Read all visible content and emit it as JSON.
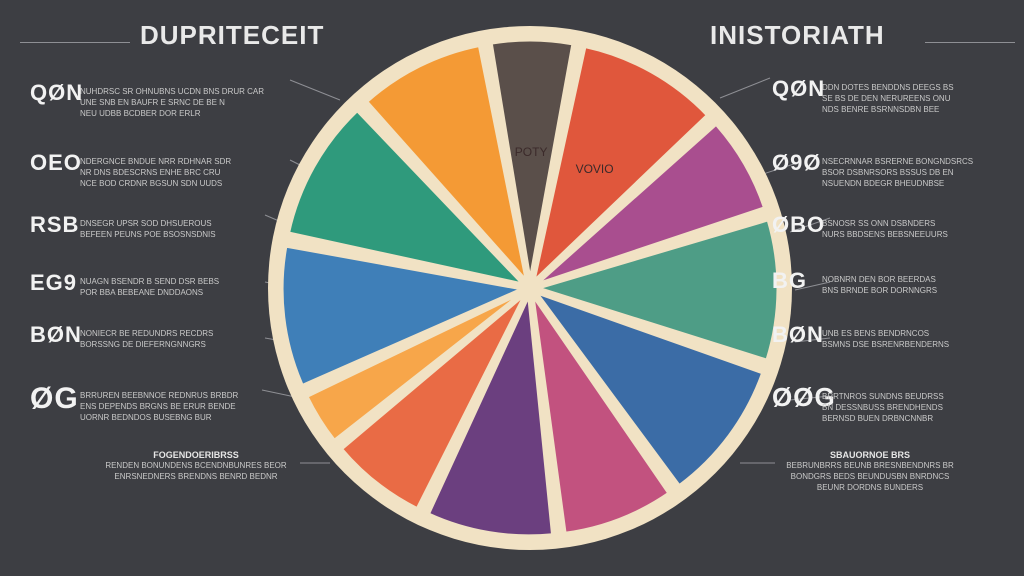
{
  "header": {
    "left_title": "DUPRITECEIT",
    "right_title": "INISTORIATH"
  },
  "chart_data": {
    "type": "pie",
    "title": "",
    "slice_labels": [
      "POTY",
      "VOVIO",
      "",
      "",
      "",
      "",
      "",
      "",
      "",
      "",
      "",
      ""
    ],
    "slices": [
      {
        "value": 6,
        "color": "#5a4f4a"
      },
      {
        "value": 10,
        "color": "#e0573c"
      },
      {
        "value": 7,
        "color": "#a94e8f"
      },
      {
        "value": 10,
        "color": "#4e9d86"
      },
      {
        "value": 10,
        "color": "#3b6ca6"
      },
      {
        "value": 8,
        "color": "#c2527f"
      },
      {
        "value": 9,
        "color": "#6b3f7f"
      },
      {
        "value": 7,
        "color": "#e96b45"
      },
      {
        "value": 4,
        "color": "#f7a64a"
      },
      {
        "value": 10,
        "color": "#3f7fb8"
      },
      {
        "value": 10,
        "color": "#2f9a7c"
      },
      {
        "value": 9,
        "color": "#f49a35"
      }
    ]
  },
  "left_labels": [
    {
      "code": "QØN",
      "lines": [
        "NUHDRSC SR OHNUBNS UCDN BNS DRUR CAR",
        "UNE SNB EN BAUFR E SRNC DE BE N",
        "NEU UDBB BCDBER DOR ERLR"
      ]
    },
    {
      "code": "OEO",
      "lines": [
        "NDERGNCE BNDUE NRR RDHNAR SDR",
        "NR DNS BDESCRNS ENHE BRC CRU",
        "NCE BOD CRDNR BGSUN SDN UUDS"
      ]
    },
    {
      "code": "RSB",
      "lines": [
        "DNSEGR UPSR SOD DHSUEROUS",
        "BEFEEN PEUNS POE BSOSNSDNIS"
      ]
    },
    {
      "code": "EG9",
      "lines": [
        "NUAGN BSENDR B SEND DSR BEBS",
        "POR BBA BEBEANE DNDDAONS"
      ]
    },
    {
      "code": "BØN",
      "lines": [
        "NONIECR BE REDUNDRS RECDRS",
        "BORSSNG DE DIEFERNGNNGRS"
      ]
    },
    {
      "code": "ØG",
      "lines": [
        "BRRUREN BEEBNNOE REDNRUS BRBDR",
        "ENS DEPENDS BRGNS BE ERUR BENDE",
        "UORNR BEDNDOS BUSEBNG BUR"
      ]
    }
  ],
  "right_labels": [
    {
      "code": "QØN",
      "lines": [
        "DDN DOTES BENDDNS DEEGS BS",
        "SE BS DE DEN NERUREENS ONU",
        "NDS BENRE BSRNNSDBN BEE"
      ]
    },
    {
      "code": "Ø9Ø",
      "lines": [
        "NSECRNNAR BSRERNE BONGNDSRCS",
        "BSOR DSBNRSORS BSSUS DB EN",
        "NSUENDN BDEGR BHEUDNBSE"
      ]
    },
    {
      "code": "ØBO",
      "lines": [
        "BSNOSR SS ONN DSBNDERS",
        "NURS BBDSENS BEBSNEEUURS"
      ]
    },
    {
      "code": "BG",
      "lines": [
        "NOBNRN DEN BOR BEERDAS",
        "BNS BRNDE BOR DORNNGRS"
      ]
    },
    {
      "code": "BØN",
      "lines": [
        "UNB ES BENS BENDRNCOS",
        "BSMNS DSE BSRENRBENDERNS"
      ]
    },
    {
      "code": "ØØG",
      "lines": [
        "BRRTNROS SUNDNS BEUDRSS",
        "BN DESSNBUSS BRENDHENDS",
        "BERNSD BUEN DRBNCNNBR"
      ]
    }
  ],
  "bottom_left": {
    "head": "FOGENDOERIBRSS",
    "lines": [
      "RENDEN BONUNDENS BCENDNBUNRES BEOR",
      "ENRSNEDNERS BRENDNS BENRD BEDNR"
    ]
  },
  "bottom_right": {
    "head": "SBAUORNOE BRS",
    "lines": [
      "BEBRUNBRRS BEUNB BRESNBENDNRS BR",
      "BONDGRS BEDS BEUNDUSBN BNRDNCS",
      "BEUNR DORDNS BUNDERS"
    ]
  }
}
